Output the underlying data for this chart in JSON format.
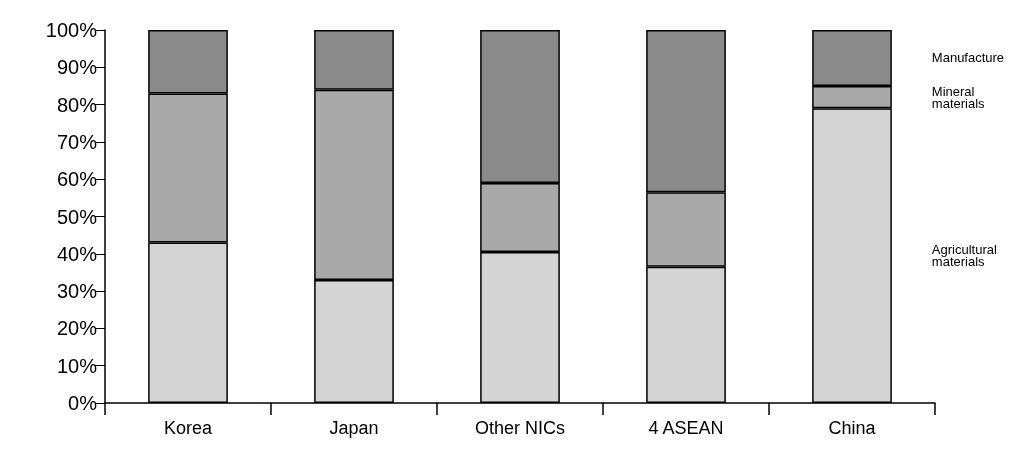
{
  "chart_data": {
    "type": "bar",
    "stacked": true,
    "categories": [
      "Korea",
      "Japan",
      "Other NICs",
      "4 ASEAN",
      "China"
    ],
    "series": [
      {
        "name": "Agricultural materials",
        "color": "#d4d4d4",
        "values": [
          43,
          33,
          40.5,
          36.5,
          79
        ]
      },
      {
        "name": "Mineral materials",
        "color": "#a9a9a9",
        "values": [
          40,
          51,
          18.5,
          20,
          6
        ]
      },
      {
        "name": "Manufacture",
        "color": "#8a8a8a",
        "values": [
          17,
          16,
          41,
          43.5,
          15
        ]
      }
    ],
    "ylim": [
      0,
      100
    ],
    "yticks": [
      {
        "value": 0,
        "label": "0%"
      },
      {
        "value": 10,
        "label": "10%"
      },
      {
        "value": 20,
        "label": "20%"
      },
      {
        "value": 30,
        "label": "30%"
      },
      {
        "value": 40,
        "label": "40%"
      },
      {
        "value": 50,
        "label": "50%"
      },
      {
        "value": 60,
        "label": "60%"
      },
      {
        "value": 70,
        "label": "70%"
      },
      {
        "value": 80,
        "label": "80%"
      },
      {
        "value": 90,
        "label": "90%"
      },
      {
        "value": 100,
        "label": "100%"
      }
    ],
    "grid": false,
    "legend": "right"
  }
}
